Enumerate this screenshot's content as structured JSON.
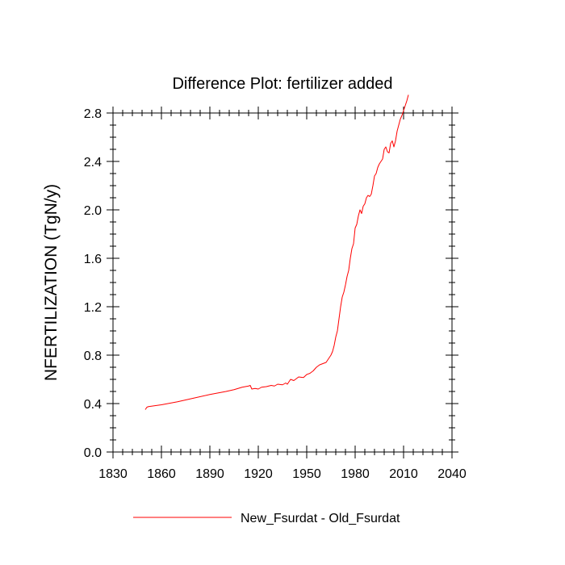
{
  "chart_data": {
    "type": "line",
    "title": "Difference Plot: fertilizer added",
    "xlabel": "",
    "ylabel": "NFERTILIZATION  (TgN/y)",
    "xlim": [
      1830,
      2040
    ],
    "ylim": [
      0.0,
      2.8
    ],
    "x_ticks": [
      1830,
      1860,
      1890,
      1920,
      1950,
      1980,
      2010,
      2040
    ],
    "y_ticks": [
      0.0,
      0.4,
      0.8,
      1.2,
      1.6,
      2.0,
      2.4,
      2.8
    ],
    "x_tick_labels": [
      "1830",
      "1860",
      "1890",
      "1920",
      "1950",
      "1980",
      "2010",
      "2040"
    ],
    "y_tick_labels": [
      "0.0",
      "0.4",
      "0.8",
      "1.2",
      "1.6",
      "2.0",
      "2.4",
      "2.8"
    ],
    "legend_position": "bottom-center",
    "grid": false,
    "series": [
      {
        "name": "New_Fsurdat - Old_Fsurdat",
        "color": "#ff0000",
        "x": [
          1850,
          1851,
          1852,
          1860,
          1870,
          1880,
          1890,
          1900,
          1905,
          1910,
          1914,
          1915,
          1916,
          1918,
          1920,
          1922,
          1925,
          1928,
          1930,
          1932,
          1935,
          1937,
          1938,
          1940,
          1942,
          1945,
          1948,
          1950,
          1952,
          1954,
          1956,
          1958,
          1960,
          1962,
          1964,
          1965,
          1966,
          1967,
          1968,
          1969,
          1970,
          1971,
          1972,
          1973,
          1974,
          1975,
          1976,
          1977,
          1978,
          1979,
          1980,
          1981,
          1982,
          1983,
          1984,
          1985,
          1986,
          1987,
          1988,
          1989,
          1990,
          1991,
          1992,
          1993,
          1994,
          1995,
          1996,
          1997,
          1998,
          1999,
          2000,
          2001,
          2002,
          2003,
          2004,
          2005,
          2006,
          2007,
          2008,
          2009,
          2010,
          2011,
          2012,
          2013
        ],
        "values": [
          0.35,
          0.37,
          0.375,
          0.39,
          0.415,
          0.445,
          0.475,
          0.5,
          0.515,
          0.535,
          0.545,
          0.55,
          0.52,
          0.525,
          0.52,
          0.535,
          0.54,
          0.55,
          0.545,
          0.56,
          0.555,
          0.57,
          0.56,
          0.6,
          0.59,
          0.62,
          0.615,
          0.64,
          0.65,
          0.67,
          0.7,
          0.72,
          0.73,
          0.74,
          0.78,
          0.8,
          0.83,
          0.88,
          0.95,
          1.0,
          1.1,
          1.2,
          1.28,
          1.32,
          1.38,
          1.45,
          1.5,
          1.6,
          1.68,
          1.72,
          1.85,
          1.88,
          1.95,
          2.0,
          1.97,
          2.03,
          2.05,
          2.1,
          2.12,
          2.11,
          2.13,
          2.2,
          2.28,
          2.3,
          2.35,
          2.38,
          2.4,
          2.42,
          2.5,
          2.52,
          2.48,
          2.47,
          2.55,
          2.57,
          2.52,
          2.57,
          2.65,
          2.7,
          2.75,
          2.78,
          2.82,
          2.86,
          2.9,
          2.95
        ]
      }
    ]
  }
}
